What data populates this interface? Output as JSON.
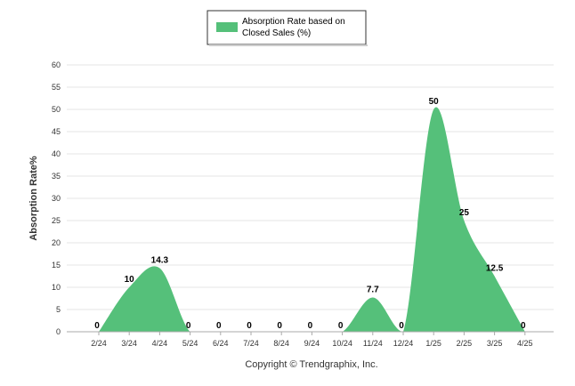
{
  "chart_data": {
    "type": "area",
    "title": "",
    "xlabel": "",
    "ylabel": "Absorption Rate%",
    "categories": [
      "2/24",
      "3/24",
      "4/24",
      "5/24",
      "6/24",
      "7/24",
      "8/24",
      "9/24",
      "10/24",
      "11/24",
      "12/24",
      "1/25",
      "2/25",
      "3/25",
      "4/25"
    ],
    "series": [
      {
        "name": "Absorption Rate based on Closed Sales (%)",
        "values": [
          0,
          10,
          14.3,
          0,
          0,
          0,
          0,
          0,
          0,
          7.7,
          0,
          50,
          25,
          12.5,
          0
        ],
        "labels": [
          "0",
          "10",
          "14.3",
          "0",
          "0",
          "0",
          "0",
          "0",
          "0",
          "7.7",
          "0",
          "50",
          "25",
          "12.5",
          "0"
        ]
      }
    ],
    "ylim": [
      0,
      60
    ],
    "yticks": [
      "0",
      "5",
      "10",
      "15",
      "20",
      "25",
      "30",
      "35",
      "40",
      "45",
      "50",
      "55",
      "60"
    ],
    "grid": true,
    "legend": "top-center",
    "colors": {
      "series": "#55c07a",
      "grid": "#e6e6e6",
      "axis": "#aaaaaa"
    }
  },
  "legend": {
    "line1": "Absorption Rate based on",
    "line2": "Closed Sales (%)"
  },
  "footer": "Copyright © Trendgraphix, Inc."
}
